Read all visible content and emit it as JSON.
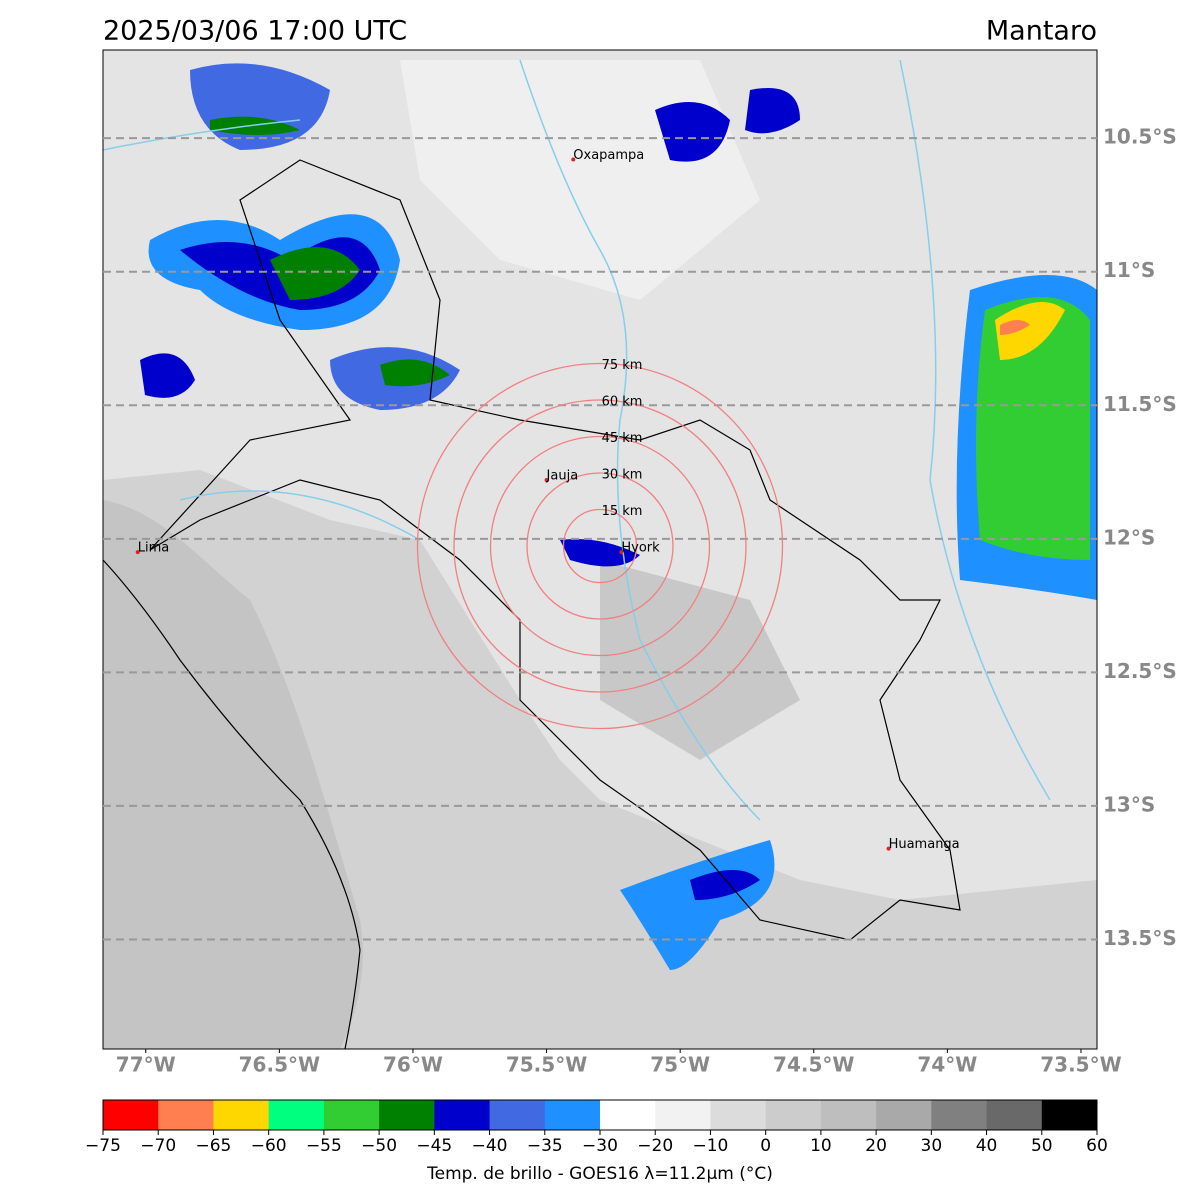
{
  "header": {
    "title_left": "2025/03/06 17:00 UTC",
    "title_right": "Mantaro"
  },
  "map": {
    "xlim": [
      -77.16,
      -73.44
    ],
    "ylim": [
      -13.91,
      -10.17
    ],
    "yticks": [
      {
        "value": -10.5,
        "label": "10.5°S"
      },
      {
        "value": -11,
        "label": "11°S"
      },
      {
        "value": -11.5,
        "label": "11.5°S"
      },
      {
        "value": -12,
        "label": "12°S"
      },
      {
        "value": -12.5,
        "label": "12.5°S"
      },
      {
        "value": -13,
        "label": "13°S"
      },
      {
        "value": -13.5,
        "label": "13.5°S"
      }
    ],
    "xticks": [
      {
        "value": -77,
        "label": "77°W"
      },
      {
        "value": -76.5,
        "label": "76.5°W"
      },
      {
        "value": -76,
        "label": "76°W"
      },
      {
        "value": -75.5,
        "label": "75.5°W"
      },
      {
        "value": -75,
        "label": "75°W"
      },
      {
        "value": -74.5,
        "label": "74.5°W"
      },
      {
        "value": -74,
        "label": "74°W"
      },
      {
        "value": -73.5,
        "label": "73.5°W"
      }
    ],
    "cities": [
      {
        "name": "Oxapampa",
        "lon": -75.4,
        "lat": -10.58
      },
      {
        "name": "Jauja",
        "lon": -75.5,
        "lat": -11.78
      },
      {
        "name": "Lima",
        "lon": -77.03,
        "lat": -12.05
      },
      {
        "name": "Hyork",
        "lon": -75.22,
        "lat": -12.05
      },
      {
        "name": "Huamanga",
        "lon": -74.22,
        "lat": -13.16
      }
    ],
    "rings": [
      "15 km",
      "30 km",
      "45 km",
      "60 km",
      "75 km"
    ]
  },
  "colorbar": {
    "label": "Temp. de brillo - GOES16 λ=11.2μm (°C)",
    "ticks": [
      {
        "value": -75,
        "label": "−75"
      },
      {
        "value": -70,
        "label": "−70"
      },
      {
        "value": -65,
        "label": "−65"
      },
      {
        "value": -60,
        "label": "−60"
      },
      {
        "value": -55,
        "label": "−55"
      },
      {
        "value": -50,
        "label": "−50"
      },
      {
        "value": -45,
        "label": "−45"
      },
      {
        "value": -40,
        "label": "−40"
      },
      {
        "value": -35,
        "label": "−35"
      },
      {
        "value": -30,
        "label": "−30"
      },
      {
        "value": -20,
        "label": "−20"
      },
      {
        "value": -10,
        "label": "−10"
      },
      0,
      10,
      20,
      30,
      40,
      50,
      60
    ],
    "colors": [
      "#ff0000",
      "#ff7f50",
      "#ffd700",
      "#00ff7f",
      "#32cd32",
      "#008000",
      "#0000cd",
      "#4169e1",
      "#1e90ff",
      "#ffffff",
      "#f2f2f2",
      "#dcdcdc",
      "#cccccc",
      "#bebebe",
      "#a9a9a9",
      "#808080",
      "#696969",
      "#000000"
    ]
  }
}
